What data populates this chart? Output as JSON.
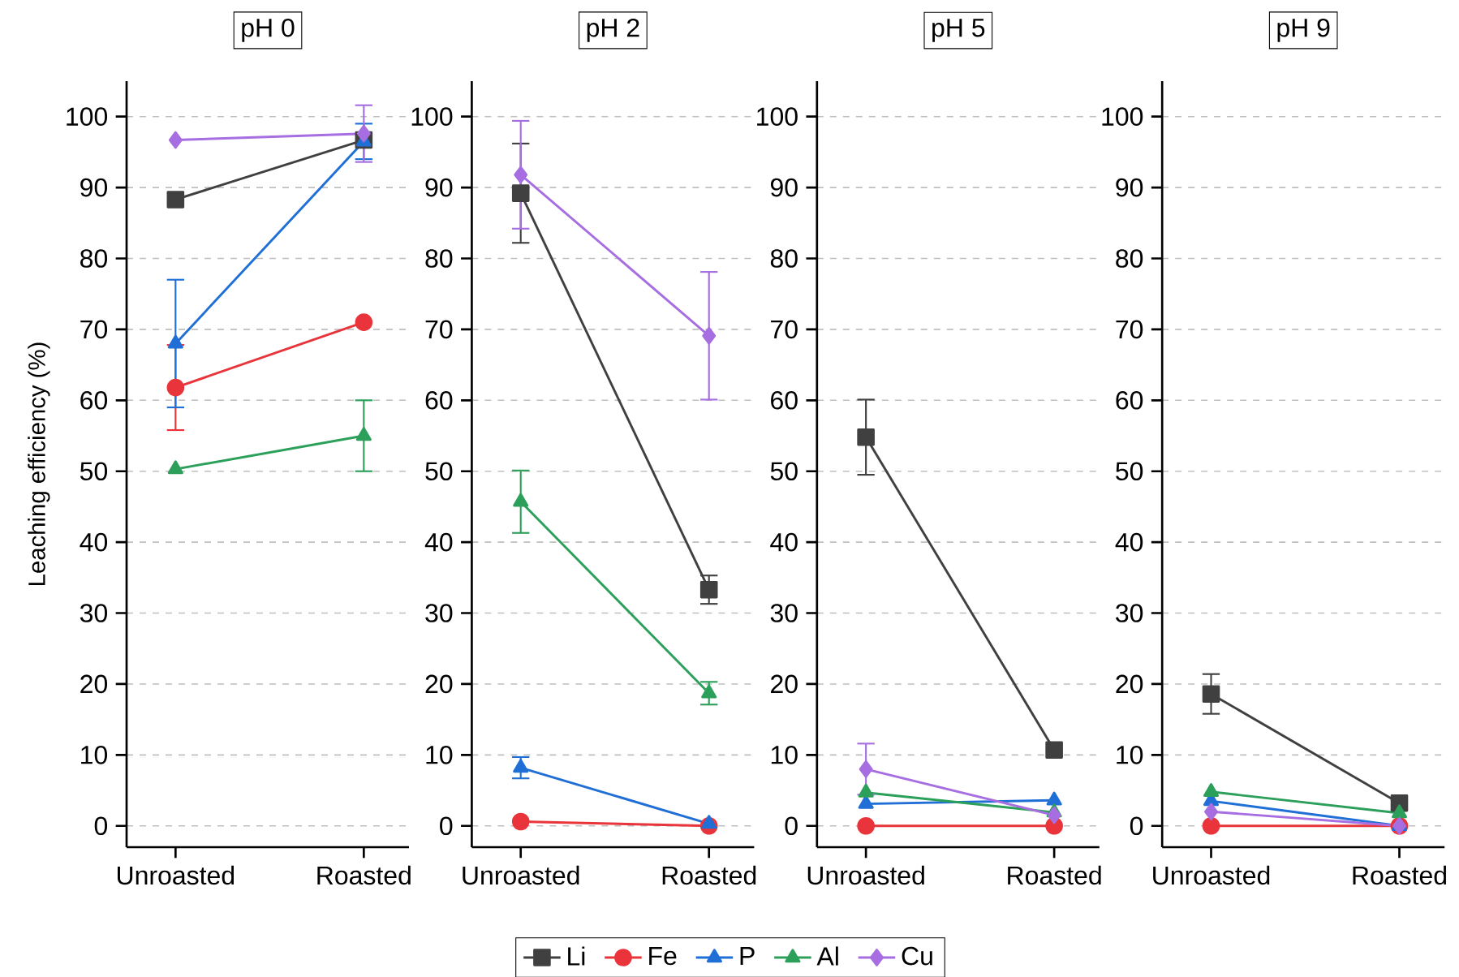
{
  "chart_data": [
    {
      "type": "line",
      "title": "pH 0",
      "ylabel": "Leaching efficiency (%)",
      "categories": [
        "Unroasted",
        "Roasted"
      ],
      "ylim": [
        -3,
        105
      ],
      "yticks": [
        0,
        10,
        20,
        30,
        40,
        50,
        60,
        70,
        80,
        90,
        100
      ],
      "grid": "y",
      "legend": "bottom",
      "series": [
        {
          "name": "Li",
          "color": "#404040",
          "marker": "square",
          "values": [
            88.3,
            96.7
          ],
          "errors": [
            null,
            null
          ]
        },
        {
          "name": "Fe",
          "color": "#e8343a",
          "marker": "circle",
          "values": [
            61.8,
            71.0
          ],
          "errors": [
            6,
            null
          ]
        },
        {
          "name": "P",
          "color": "#1f6fd6",
          "marker": "triangle",
          "values": [
            68,
            96.5
          ],
          "errors": [
            9,
            2.5
          ]
        },
        {
          "name": "Al",
          "color": "#2ca05a",
          "marker": "triangle",
          "values": [
            50.3,
            55
          ],
          "errors": [
            null,
            5
          ]
        },
        {
          "name": "Cu",
          "color": "#a66ee0",
          "marker": "diamond",
          "values": [
            96.7,
            97.6
          ],
          "errors": [
            null,
            4
          ]
        }
      ]
    },
    {
      "type": "line",
      "title": "pH 2",
      "categories": [
        "Unroasted",
        "Roasted"
      ],
      "ylim": [
        -3,
        105
      ],
      "yticks": [
        0,
        10,
        20,
        30,
        40,
        50,
        60,
        70,
        80,
        90,
        100
      ],
      "grid": "y",
      "series": [
        {
          "color": "#404040",
          "marker": "square",
          "values": [
            89.2,
            33.3
          ],
          "errors": [
            7,
            2
          ]
        },
        {
          "color": "#e8343a",
          "marker": "circle",
          "values": [
            0.6,
            0
          ],
          "errors": [
            null,
            null
          ]
        },
        {
          "color": "#1f6fd6",
          "marker": "triangle",
          "values": [
            8.2,
            0.3
          ],
          "errors": [
            1.5,
            null
          ]
        },
        {
          "color": "#2ca05a",
          "marker": "triangle",
          "values": [
            45.7,
            18.7
          ],
          "errors": [
            4.4,
            1.6
          ]
        },
        {
          "color": "#a66ee0",
          "marker": "diamond",
          "values": [
            91.8,
            69.1
          ],
          "errors": [
            7.6,
            9
          ]
        }
      ]
    },
    {
      "type": "line",
      "title": "pH 5",
      "categories": [
        "Unroasted",
        "Roasted"
      ],
      "ylim": [
        -3,
        105
      ],
      "yticks": [
        0,
        10,
        20,
        30,
        40,
        50,
        60,
        70,
        80,
        90,
        100
      ],
      "grid": "y",
      "series": [
        {
          "color": "#404040",
          "marker": "square",
          "values": [
            54.8,
            10.7
          ],
          "errors": [
            5.3,
            null
          ]
        },
        {
          "color": "#e8343a",
          "marker": "circle",
          "values": [
            0,
            0
          ],
          "errors": [
            null,
            null
          ]
        },
        {
          "color": "#1f6fd6",
          "marker": "triangle",
          "values": [
            3.1,
            3.6
          ],
          "errors": [
            null,
            null
          ]
        },
        {
          "color": "#2ca05a",
          "marker": "triangle",
          "values": [
            4.7,
            1.9
          ],
          "errors": [
            null,
            null
          ]
        },
        {
          "color": "#a66ee0",
          "marker": "diamond",
          "values": [
            8,
            1.5
          ],
          "errors": [
            3.6,
            null
          ]
        }
      ]
    },
    {
      "type": "line",
      "title": "pH 9",
      "categories": [
        "Unroasted",
        "Roasted"
      ],
      "ylim": [
        -3,
        105
      ],
      "yticks": [
        0,
        10,
        20,
        30,
        40,
        50,
        60,
        70,
        80,
        90,
        100
      ],
      "grid": "y",
      "series": [
        {
          "color": "#404040",
          "marker": "square",
          "values": [
            18.6,
            3.2
          ],
          "errors": [
            2.8,
            null
          ]
        },
        {
          "color": "#e8343a",
          "marker": "circle",
          "values": [
            0,
            0
          ],
          "errors": [
            null,
            null
          ]
        },
        {
          "color": "#1f6fd6",
          "marker": "triangle",
          "values": [
            3.5,
            0
          ],
          "errors": [
            null,
            null
          ]
        },
        {
          "color": "#2ca05a",
          "marker": "triangle",
          "values": [
            4.8,
            1.8
          ],
          "errors": [
            null,
            null
          ]
        },
        {
          "color": "#a66ee0",
          "marker": "diamond",
          "values": [
            2,
            0
          ],
          "errors": [
            null,
            null
          ]
        }
      ]
    }
  ]
}
